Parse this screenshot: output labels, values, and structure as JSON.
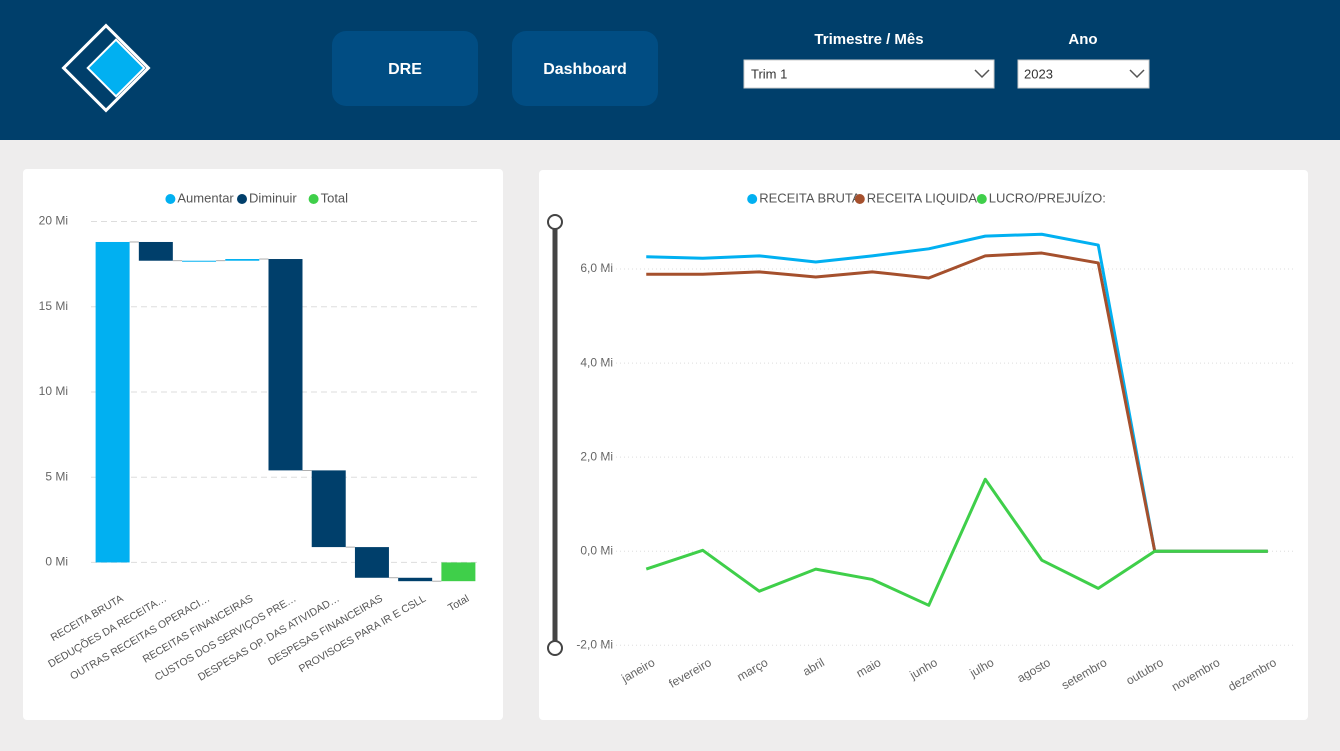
{
  "header": {
    "buttons": [
      "DRE",
      "Dashboard"
    ],
    "filters": [
      {
        "label": "Trimestre / Mês",
        "value": "Trim 1"
      },
      {
        "label": "Ano",
        "value": "2023"
      }
    ]
  },
  "chart_data": [
    {
      "type": "waterfall",
      "legend": [
        {
          "name": "Aumentar",
          "color": "#01b0f1"
        },
        {
          "name": "Diminuir",
          "color": "#003f6b"
        },
        {
          "name": "Total",
          "color": "#3fcf4a"
        }
      ],
      "categories": [
        "RECEITA BRUTA",
        "DEDUÇÕES DA RECEITA…",
        "OUTRAS RECEITAS OPERACI…",
        "RECEITAS FINANCEIRAS",
        "CUSTOS DOS SERVIÇOS PRE…",
        "DESPESAS OP. DAS ATIVIDAD…",
        "DESPESAS FINANCEIRAS",
        "PROVISOES PARA IR E CSLL",
        "Total"
      ],
      "values": [
        18.8,
        -1.1,
        0,
        0.1,
        -12.4,
        -4.5,
        -1.8,
        -0.2,
        -1.1
      ],
      "ylim": [
        -1.5,
        20.5
      ],
      "yticks": [
        {
          "value": 0,
          "label": "0 Mi"
        },
        {
          "value": 5,
          "label": "5 Mi"
        },
        {
          "value": 10,
          "label": "10 Mi"
        },
        {
          "value": 15,
          "label": "15 Mi"
        },
        {
          "value": 20,
          "label": "20 Mi"
        }
      ],
      "grid": true
    },
    {
      "type": "line",
      "categories": [
        "janeiro",
        "fevereiro",
        "março",
        "abril",
        "maio",
        "junho",
        "julho",
        "agosto",
        "setembro",
        "outubro",
        "novembro",
        "dezembro"
      ],
      "series": [
        {
          "name": "RECEITA BRUTA",
          "color": "#01b0f1",
          "values": [
            6.26,
            6.23,
            6.28,
            6.15,
            6.28,
            6.43,
            6.7,
            6.74,
            6.51,
            0,
            0,
            0
          ]
        },
        {
          "name": "RECEITA LIQUIDA",
          "color": "#a5502d",
          "values": [
            5.89,
            5.89,
            5.94,
            5.83,
            5.94,
            5.81,
            6.28,
            6.34,
            6.13,
            0,
            0,
            0
          ]
        },
        {
          "name": "LUCRO/PREJUÍZO:",
          "color": "#3fcf4a",
          "values": [
            -0.38,
            0.02,
            -0.85,
            -0.38,
            -0.6,
            -1.15,
            1.53,
            -0.19,
            -0.79,
            0,
            0,
            0
          ]
        }
      ],
      "ylim": [
        -2.1,
        7.0
      ],
      "yticks": [
        {
          "value": -2,
          "label": "-2,0 Mi"
        },
        {
          "value": 0,
          "label": "0,0 Mi"
        },
        {
          "value": 2,
          "label": "2,0 Mi"
        },
        {
          "value": 4,
          "label": "4,0 Mi"
        },
        {
          "value": 6,
          "label": "6,0 Mi"
        }
      ],
      "grid": true
    }
  ]
}
